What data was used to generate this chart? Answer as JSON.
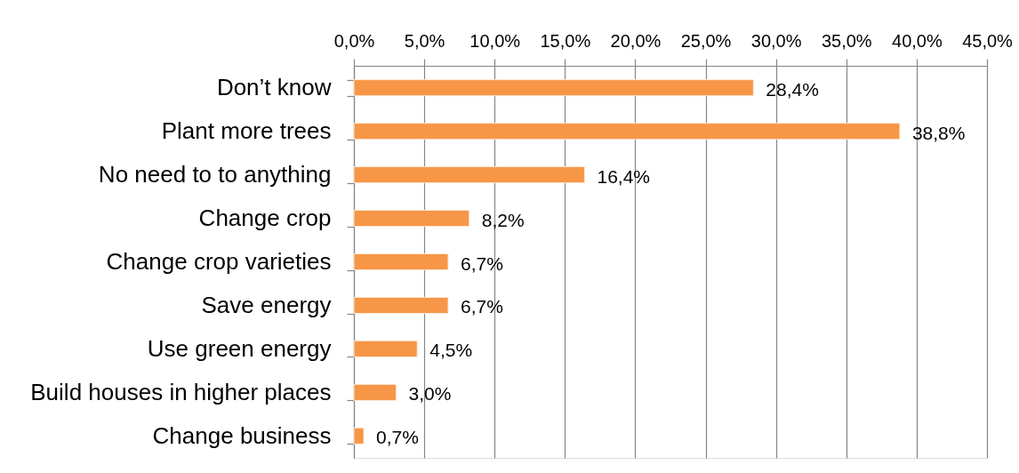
{
  "chart_data": {
    "type": "bar",
    "orientation": "horizontal",
    "categories": [
      "Don’t know",
      "Plant more trees",
      "No need to to anything",
      "Change crop",
      "Change crop varieties",
      "Save energy",
      "Use green energy",
      "Build houses in higher places",
      "Change business"
    ],
    "values": [
      28.4,
      38.8,
      16.4,
      8.2,
      6.7,
      6.7,
      4.5,
      3.0,
      0.7
    ],
    "color": "#f79646",
    "value_labels": [
      "28,4%",
      "38,8%",
      "16,4%",
      "8,2%",
      "6,7%",
      "6,7%",
      "4,5%",
      "3,0%",
      "0,7%"
    ],
    "xlim": [
      0,
      45
    ],
    "xticks": [
      {
        "value": 0,
        "label": "0,0%"
      },
      {
        "value": 5,
        "label": "5,0%"
      },
      {
        "value": 10,
        "label": "10,0%"
      },
      {
        "value": 15,
        "label": "15,0%"
      },
      {
        "value": 20,
        "label": "20,0%"
      },
      {
        "value": 25,
        "label": "25,0%"
      },
      {
        "value": 30,
        "label": "30,0%"
      },
      {
        "value": 35,
        "label": "35,0%"
      },
      {
        "value": 40,
        "label": "40,0%"
      },
      {
        "value": 45,
        "label": "45,0%"
      }
    ],
    "grid": "x"
  }
}
